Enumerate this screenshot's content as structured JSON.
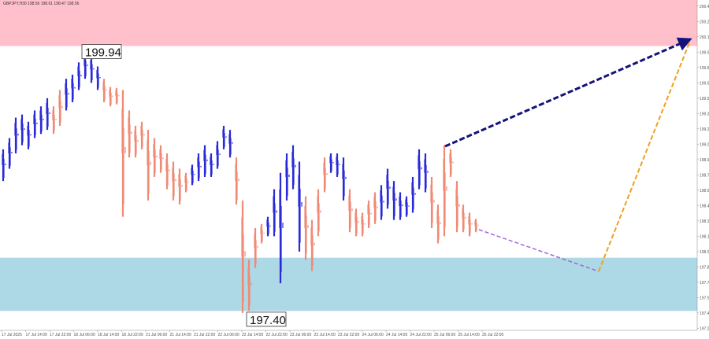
{
  "chart_data": {
    "type": "range-bar",
    "title": "GBPJPY,H30 198.56 198.61 198.47 198.56",
    "ylim": [
      197.23,
      200.46
    ],
    "yticks": [
      {
        "value": 200.4,
        "label": "200.40"
      },
      {
        "value": 200.25,
        "label": "200.25"
      },
      {
        "value": 200.1,
        "label": "200.10"
      },
      {
        "value": 199.95,
        "label": "199.95"
      },
      {
        "value": 199.8,
        "label": "199.80"
      },
      {
        "value": 199.65,
        "label": "199.65"
      },
      {
        "value": 199.5,
        "label": "199.50"
      },
      {
        "value": 199.35,
        "label": "199.35"
      },
      {
        "value": 199.2,
        "label": "199.20"
      },
      {
        "value": 199.05,
        "label": "199.05"
      },
      {
        "value": 198.9,
        "label": "198.90"
      },
      {
        "value": 198.75,
        "label": "198.75"
      },
      {
        "value": 198.6,
        "label": "198.60"
      },
      {
        "value": 198.45,
        "label": "198.45"
      },
      {
        "value": 198.3,
        "label": "198.30"
      },
      {
        "value": 198.15,
        "label": "198.15"
      },
      {
        "value": 198,
        "label": "198.00"
      },
      {
        "value": 197.85,
        "label": "197.85"
      },
      {
        "value": 197.7,
        "label": "197.70"
      },
      {
        "value": 197.55,
        "label": "197.55"
      },
      {
        "value": 197.4,
        "label": "197.40"
      },
      {
        "value": 197.25,
        "label": "197.25"
      }
    ],
    "categories": [
      "17 Jul 2025",
      "17 Jul 14:00",
      "17 Jul 22:00",
      "18 Jul 06:00",
      "18 Jul 14:00",
      "18 Jul 22:00",
      "21 Jul 06:00",
      "21 Jul 14:00",
      "21 Jul 22:00",
      "22 Jul 06:00",
      "22 Jul 14:00",
      "22 Jul 22:00",
      "23 Jul 06:00",
      "23 Jul 14:00",
      "23 Jul 22:00",
      "24 Jul 06:00",
      "24 Jul 14:00",
      "24 Jul 22:00",
      "25 Jul 06:00",
      "25 Jul 14:00",
      "25 Jul 22:00"
    ],
    "highs": [
      199.0,
      199.11,
      199.31,
      199.34,
      199.27,
      199.38,
      199.42,
      199.5,
      199.42,
      199.58,
      199.69,
      199.73,
      199.85,
      199.94,
      199.91,
      199.81,
      199.69,
      199.61,
      199.6,
      199.58,
      199.38,
      199.23,
      199.27,
      199.19,
      199.11,
      199.04,
      198.96,
      198.88,
      198.81,
      198.77,
      198.85,
      198.96,
      199.04,
      198.96,
      199.08,
      199.23,
      199.19,
      198.92,
      198.5,
      197.92,
      198.23,
      198.27,
      198.34,
      198.61,
      198.77,
      198.96,
      199.04,
      198.88,
      198.54,
      198.31,
      198.61,
      198.92,
      198.96,
      198.96,
      198.92,
      198.61,
      198.42,
      198.38,
      198.5,
      198.58,
      198.65,
      198.81,
      198.69,
      198.58,
      198.54,
      198.73,
      199.0,
      198.96,
      198.73,
      198.46,
      199.04,
      199.0,
      198.69,
      198.46,
      198.38,
      198.32
    ],
    "lows": [
      198.69,
      198.81,
      198.96,
      199.04,
      199.0,
      199.11,
      199.15,
      199.19,
      199.15,
      199.23,
      199.38,
      199.46,
      199.58,
      199.69,
      199.65,
      199.58,
      199.46,
      199.42,
      199.44,
      198.34,
      198.92,
      198.92,
      199.0,
      198.5,
      198.73,
      198.77,
      198.61,
      198.5,
      198.46,
      198.58,
      198.65,
      198.69,
      198.73,
      198.73,
      198.81,
      199.0,
      198.92,
      198.46,
      197.4,
      197.42,
      197.84,
      198.08,
      198.15,
      198.15,
      197.69,
      198.5,
      198.61,
      198.0,
      197.92,
      197.81,
      198.15,
      198.58,
      198.77,
      198.73,
      198.5,
      198.19,
      198.15,
      198.15,
      198.23,
      198.27,
      198.31,
      198.42,
      198.31,
      198.31,
      198.34,
      198.38,
      198.61,
      198.58,
      198.23,
      198.08,
      198.15,
      198.73,
      198.19,
      198.19,
      198.15,
      198.19
    ],
    "up_bar": [
      true,
      true,
      true,
      true,
      true,
      true,
      true,
      true,
      false,
      false,
      true,
      true,
      true,
      true,
      true,
      true,
      false,
      false,
      false,
      false,
      false,
      false,
      false,
      false,
      false,
      false,
      false,
      false,
      false,
      false,
      true,
      true,
      true,
      true,
      true,
      true,
      true,
      false,
      false,
      false,
      false,
      false,
      true,
      true,
      true,
      true,
      true,
      true,
      false,
      false,
      false,
      false,
      true,
      true,
      true,
      false,
      false,
      false,
      false,
      false,
      true,
      true,
      true,
      true,
      true,
      true,
      true,
      true,
      false,
      false,
      false,
      false,
      false,
      false,
      false,
      false
    ],
    "up_color": "#2a2ad8",
    "down_color": "#f08a75",
    "zones": [
      {
        "range": [
          200.01,
          200.46
        ],
        "color": "#ffc0cb"
      },
      {
        "range": [
          197.42,
          197.94
        ],
        "color": "#add8e6"
      }
    ],
    "annotations": [
      {
        "value": 199.94,
        "label": "199.94"
      },
      {
        "value": 197.4,
        "label": "197.40"
      }
    ]
  }
}
